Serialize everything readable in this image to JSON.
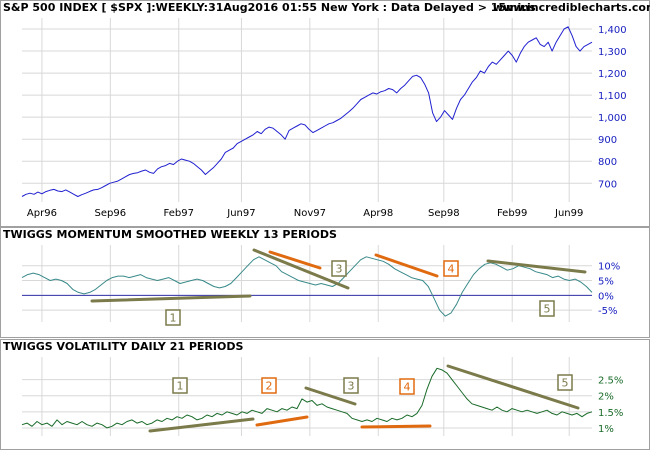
{
  "header": {
    "title": "S&P 500 INDEX [ $SPX ]:WEEKLY:31Aug2016 01:55 New York : Data Delayed > 15mins",
    "site": "www.incrediblecharts.com"
  },
  "colors": {
    "price_line": "#2020d0",
    "momentum_line": "#3a8a8a",
    "zero_line": "#3333aa",
    "volatility_line": "#1a6b2a",
    "trend_olive": "#7b7a4a",
    "trend_orange": "#e06a10",
    "grid": "#d8d8d8",
    "frame": "#a0a0a0"
  },
  "chart_data": [
    {
      "type": "line",
      "title": "S&P 500 INDEX [ $SPX ]:WEEKLY:31Aug2016 01:55 New York : Data Delayed > 15mins",
      "xlabel": "",
      "ylabel": "",
      "x_ticks": [
        "Apr96",
        "Sep96",
        "Feb97",
        "Jun97",
        "Nov97",
        "Apr98",
        "Sep98",
        "Feb99",
        "Jun99"
      ],
      "y_ticks": [
        "700",
        "800",
        "900",
        "1,000",
        "1,100",
        "1,200",
        "1,300",
        "1,400"
      ],
      "ylim": [
        615,
        1450
      ],
      "grid": true,
      "series": [
        {
          "values": [
            640,
            650,
            655,
            650,
            660,
            652,
            662,
            668,
            672,
            665,
            662,
            670,
            660,
            650,
            640,
            648,
            655,
            663,
            670,
            672,
            680,
            690,
            700,
            705,
            710,
            720,
            730,
            740,
            745,
            748,
            755,
            760,
            750,
            745,
            765,
            775,
            780,
            790,
            785,
            800,
            810,
            805,
            800,
            790,
            775,
            760,
            740,
            755,
            770,
            790,
            810,
            840,
            850,
            860,
            880,
            890,
            900,
            910,
            920,
            935,
            925,
            945,
            955,
            950,
            935,
            920,
            900,
            940,
            950,
            960,
            970,
            965,
            945,
            930,
            940,
            950,
            960,
            970,
            975,
            985,
            995,
            1010,
            1025,
            1040,
            1060,
            1080,
            1090,
            1100,
            1110,
            1105,
            1115,
            1120,
            1130,
            1125,
            1110,
            1130,
            1145,
            1165,
            1185,
            1190,
            1180,
            1150,
            1110,
            1020,
            980,
            1000,
            1030,
            1010,
            990,
            1040,
            1080,
            1100,
            1130,
            1160,
            1180,
            1210,
            1200,
            1230,
            1250,
            1240,
            1260,
            1280,
            1300,
            1280,
            1250,
            1290,
            1320,
            1340,
            1350,
            1360,
            1330,
            1320,
            1340,
            1300,
            1340,
            1370,
            1400,
            1410,
            1370,
            1320,
            1300,
            1320,
            1330,
            1340
          ]
        }
      ]
    },
    {
      "type": "line",
      "title": "TWIGGS MOMENTUM SMOOTHED WEEKLY 13 PERIODS",
      "xlabel": "",
      "ylabel": "",
      "y_ticks": [
        "10%",
        "5%",
        "0%",
        "-5%"
      ],
      "ylim": [
        -9,
        17
      ],
      "grid": true,
      "series": [
        {
          "values": [
            6,
            7,
            7.5,
            7,
            6,
            5,
            5.5,
            5,
            4,
            2,
            1,
            0.5,
            1,
            2,
            3.5,
            5,
            6,
            6.5,
            6.5,
            6,
            6.5,
            7,
            6,
            5.5,
            5,
            5.5,
            6,
            5,
            4,
            4.5,
            5,
            5.5,
            5,
            4,
            3,
            2.5,
            3,
            4,
            6,
            8,
            10,
            12,
            13,
            12,
            11,
            10,
            8,
            7,
            6,
            5,
            4.5,
            4,
            3.5,
            4,
            3.5,
            3,
            4,
            6,
            8,
            10,
            12,
            13,
            12.5,
            12,
            11.5,
            10.5,
            9,
            8,
            7,
            6,
            5.5,
            5,
            3,
            -1,
            -5,
            -7,
            -6,
            -3,
            1,
            4,
            7,
            9,
            10.5,
            11,
            10.5,
            9.5,
            8.5,
            9,
            10,
            9.5,
            9,
            8,
            7.5,
            7,
            6,
            6.5,
            5.5,
            5,
            5.5,
            4.5,
            3,
            1
          ]
        }
      ]
    },
    {
      "type": "line",
      "title": "TWIGGS VOLATILITY DAILY 21 PERIODS",
      "xlabel": "",
      "ylabel": "",
      "y_ticks": [
        "2.5%",
        "2%",
        "1.5%",
        "1%"
      ],
      "ylim": [
        0.75,
        3.2
      ],
      "grid": true,
      "series": [
        {
          "values": [
            1.1,
            1.15,
            1.05,
            1.2,
            1.1,
            1.15,
            1.05,
            1.25,
            1.1,
            1.2,
            1.15,
            1.1,
            1.2,
            1.1,
            1.05,
            1.15,
            1.1,
            1.0,
            1.05,
            1.15,
            1.1,
            1.2,
            1.25,
            1.15,
            1.2,
            1.1,
            1.15,
            1.25,
            1.2,
            1.3,
            1.25,
            1.35,
            1.3,
            1.4,
            1.35,
            1.25,
            1.3,
            1.4,
            1.35,
            1.45,
            1.4,
            1.5,
            1.45,
            1.4,
            1.5,
            1.45,
            1.55,
            1.5,
            1.45,
            1.6,
            1.55,
            1.5,
            1.6,
            1.55,
            1.65,
            1.6,
            1.9,
            1.8,
            1.85,
            1.7,
            1.75,
            1.65,
            1.6,
            1.55,
            1.5,
            1.45,
            1.3,
            1.25,
            1.2,
            1.25,
            1.2,
            1.3,
            1.25,
            1.2,
            1.3,
            1.25,
            1.3,
            1.4,
            1.35,
            1.45,
            1.7,
            2.2,
            2.6,
            2.85,
            2.8,
            2.7,
            2.5,
            2.3,
            2.1,
            1.9,
            1.75,
            1.7,
            1.65,
            1.6,
            1.55,
            1.65,
            1.55,
            1.5,
            1.6,
            1.55,
            1.5,
            1.55,
            1.5,
            1.45,
            1.5,
            1.55,
            1.45,
            1.4,
            1.5,
            1.45,
            1.4,
            1.45,
            1.35,
            1.45,
            1.5
          ]
        }
      ]
    }
  ],
  "annotations": {
    "momentum": [
      "1",
      "3",
      "4",
      "5"
    ],
    "volatility": [
      "1",
      "2",
      "3",
      "4",
      "5"
    ]
  }
}
